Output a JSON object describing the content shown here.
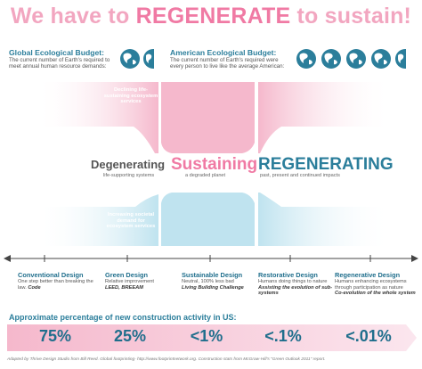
{
  "title": {
    "pre": "We have to ",
    "emph": "REGENERATE",
    "post": " to sustain!"
  },
  "global_budget": {
    "heading": "Global Ecological Budget:",
    "desc": "The current number of Earth's required to meet annual human resource demands:",
    "globes": 1.5
  },
  "american_budget": {
    "heading": "American Ecological Budget:",
    "desc": "The current number of Earth's required were every person to live like the average American:",
    "globes": 4.5
  },
  "top_side_label": "Declining life-sustaining ecosystem services",
  "bottom_side_label": "Increasing societal demand for ecosystem services",
  "middle": {
    "degenerating": {
      "label": "Degenerating",
      "sub": "life-supporting systems"
    },
    "sustaining": {
      "label": "Sustaining",
      "sub": "a degraded planet"
    },
    "regenerating": {
      "label": "REGENERATING",
      "sub": "past, present and continued impacts"
    }
  },
  "stages": [
    {
      "title": "Conventional Design",
      "desc": "One step better than breaking the law.",
      "emph": "Code"
    },
    {
      "title": "Green Design",
      "desc": "Relative improvement",
      "emph": "LEED, BREEAM"
    },
    {
      "title": "Sustainable Design",
      "desc": "Neutral, 100% less bad",
      "emph": "Living Building Challenge"
    },
    {
      "title": "Restorative Design",
      "desc": "Humans doing things to nature",
      "emph": "Assisting the evolution of sub-systems"
    },
    {
      "title": "Regenerative Design",
      "desc": "Humans enhancing ecosystems through participation as nature",
      "emph": "Co-evolution of the whole system"
    }
  ],
  "percent_title": "Approximate percentage of new construction activity in US:",
  "percentages": [
    "75%",
    "25%",
    "<1%",
    "<.1%",
    "<.01%"
  ],
  "footer": "Adapted by Thrive Design Studio from Bill Reed. Global footprinting- http://www.footprintnetwork.org. Construction stats from McGraw-Hill's \"Green Outlook 2011\" report.",
  "colors": {
    "pink": "#f5b8cc",
    "pink_dark": "#f07aa4",
    "blue": "#bfe3ef",
    "blue_dark": "#2b7e9b"
  }
}
